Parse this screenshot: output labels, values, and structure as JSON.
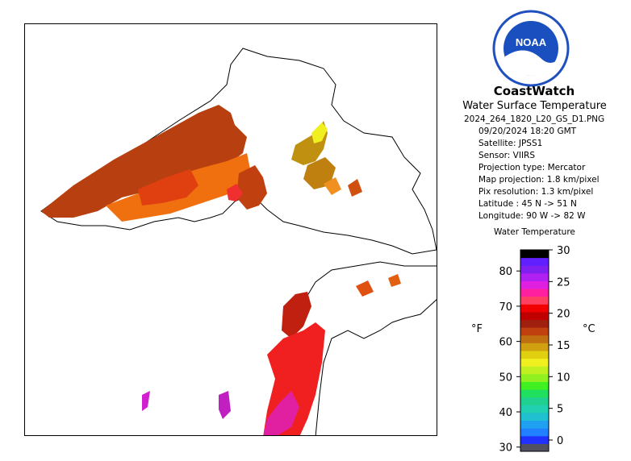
{
  "brand": "CoastWatch",
  "product_title": "Water Surface Temperature",
  "filename": "2024_264_1820_L20_GS_D1.PNG",
  "date_time": "09/20/2024   18:20 GMT",
  "satellite": "Satellite: JPSS1",
  "sensor": "Sensor: VIIRS",
  "projection_type": "Projection type:  Mercator",
  "map_projection": "Map projection: 1.8 km/pixel",
  "pix_resolution": "Pix resolution: 1.3 km/pixel",
  "latitude": "Latitude : 45 N -> 51 N",
  "longitude": "Longitude: 90 W -> 82 W",
  "logo_text": "NOAA",
  "colorbar": {
    "title": "Water Temperature",
    "unit_left": "°F",
    "unit_right": "°C",
    "f_ticks": [
      "30",
      "40",
      "50",
      "60",
      "70",
      "80"
    ],
    "c_ticks": [
      "0",
      "5",
      "10",
      "15",
      "20",
      "25",
      "30"
    ],
    "colors": [
      "#505060",
      "#2030ff",
      "#2080ff",
      "#20a0f0",
      "#20c0d0",
      "#20d0b0",
      "#20d090",
      "#20e060",
      "#40f020",
      "#90f020",
      "#c0f020",
      "#f0f020",
      "#e0d010",
      "#d0a010",
      "#c07010",
      "#c04010",
      "#a02010",
      "#c00000",
      "#f00000",
      "#ff4060",
      "#ff20a0",
      "#e020e0",
      "#b020f0",
      "#8020f0",
      "#6020ff",
      "#000000"
    ]
  }
}
